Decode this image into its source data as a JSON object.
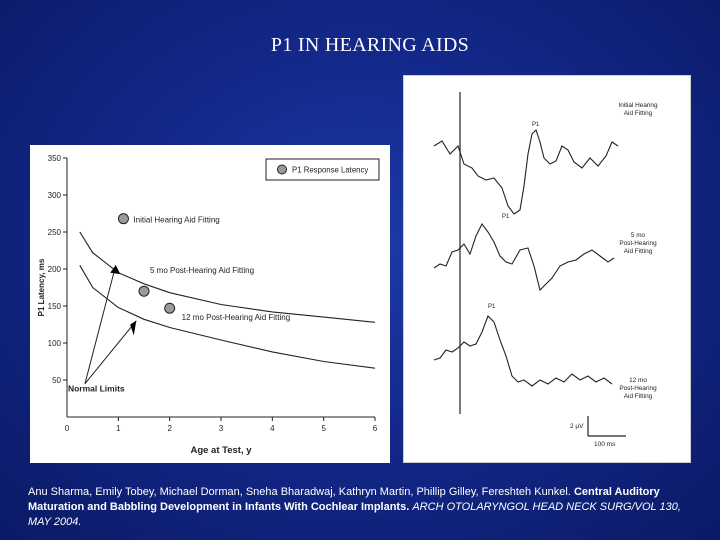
{
  "slide": {
    "title": "P1 IN HEARING AIDS"
  },
  "citation": {
    "authors": "Anu Sharma, Emily Tobey, Michael Dorman, Sneha Bharadwaj, Kathryn Martin, Phillip Gilley, Fereshteh Kunkel. ",
    "article_title": "Central Auditory Maturation and Babbling Development in Infants With Cochlear Implants",
    "separator": ". ",
    "journal": "ARCH OTOLARYNGOL HEAD NECK SURG/VOL 130, MAY 2004."
  },
  "chart_data": [
    {
      "type": "scatter",
      "title": "",
      "xlabel": "Age at Test, y",
      "ylabel": "P1 Latency, ms",
      "xlim": [
        0,
        6
      ],
      "ylim": [
        0,
        350
      ],
      "x_ticks": [
        0,
        1,
        2,
        3,
        4,
        5,
        6
      ],
      "y_ticks": [
        50,
        100,
        150,
        200,
        250,
        300,
        350
      ],
      "legend": {
        "label": "P1 Response Latency",
        "position": "top-right"
      },
      "points": [
        {
          "label": "Initial Hearing Aid Fitting",
          "x": 1.1,
          "y": 268
        },
        {
          "label": "5 mo Post-Hearing Aid Fitting",
          "x": 1.5,
          "y": 170
        },
        {
          "label": "12 mo Post-Hearing Aid Fitting",
          "x": 2.0,
          "y": 147
        }
      ],
      "reference_lines": [
        {
          "name": "Normal Limits upper",
          "x": [
            0.25,
            0.5,
            1,
            1.5,
            2,
            3,
            4,
            5,
            6
          ],
          "y": [
            250,
            222,
            195,
            180,
            168,
            152,
            142,
            135,
            128
          ]
        },
        {
          "name": "Normal Limits lower",
          "x": [
            0.25,
            0.5,
            1,
            1.5,
            2,
            3,
            4,
            5,
            6
          ],
          "y": [
            205,
            175,
            148,
            132,
            121,
            104,
            88,
            75,
            66
          ]
        }
      ],
      "annotations": [
        "Normal Limits"
      ]
    },
    {
      "type": "line",
      "title": "",
      "series": [
        {
          "name": "Initial Hearing Aid Fitting",
          "peak_label": "P1"
        },
        {
          "name": "5 mo Post-Hearing Aid Fitting",
          "peak_label": "P1"
        },
        {
          "name": "12 mo Post-Hearing Aid Fitting",
          "peak_label": "P1"
        }
      ],
      "scale_bar": {
        "amplitude": "2 µV",
        "time": "100 ms"
      }
    }
  ],
  "colors": {
    "background": "#13288a",
    "text": "#ffffff",
    "plot_ink": "#222222",
    "marker_fill": "#9a9a9a"
  }
}
